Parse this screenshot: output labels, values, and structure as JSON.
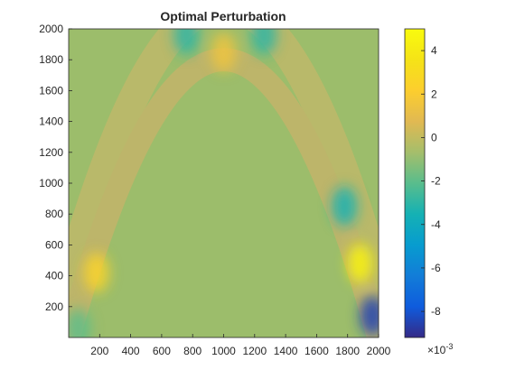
{
  "chart_data": {
    "type": "heatmap",
    "title": "Optimal Perturbation",
    "xlabel": "",
    "ylabel": "",
    "xlim": [
      0,
      2000
    ],
    "ylim": [
      0,
      2000
    ],
    "x_ticks": [
      200,
      400,
      600,
      800,
      1000,
      1200,
      1400,
      1600,
      1800,
      2000
    ],
    "y_ticks": [
      200,
      400,
      600,
      800,
      1000,
      1200,
      1400,
      1600,
      1800,
      2000
    ],
    "colormap": "parula",
    "colors": {
      "background_value_color": "#9cbd6b"
    },
    "colorbar": {
      "location": "right",
      "clim": [
        -9.2,
        5
      ],
      "ticks": [
        -8,
        -6,
        -4,
        -2,
        0,
        2,
        4
      ],
      "exponent_label": "×10",
      "exponent_power": "-3"
    },
    "bands": [
      {
        "name": "outer-arc",
        "apex_y": 2150,
        "base_y": 0,
        "half_width": 1100,
        "thickness": 190
      },
      {
        "name": "inner-arc",
        "apex_y": 1800,
        "base_y": 0,
        "half_width": 1000,
        "thickness": 150
      }
    ],
    "features": [
      {
        "x": 1960,
        "y": 140,
        "value": -8.5
      },
      {
        "x": 1880,
        "y": 480,
        "value": 4.5
      },
      {
        "x": 1780,
        "y": 850,
        "value": -3.5
      },
      {
        "x": 1260,
        "y": 1960,
        "value": -3.0
      },
      {
        "x": 760,
        "y": 1960,
        "value": -3.0
      },
      {
        "x": 180,
        "y": 420,
        "value": 2.5
      },
      {
        "x": 60,
        "y": 60,
        "value": -2.0
      },
      {
        "x": 1000,
        "y": 1850,
        "value": 1.5
      }
    ]
  }
}
